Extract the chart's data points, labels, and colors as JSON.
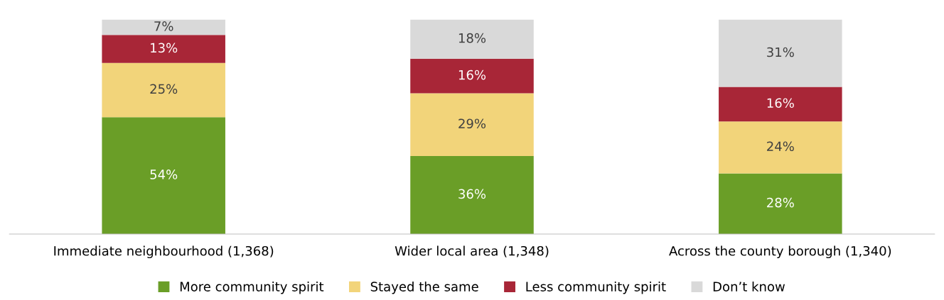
{
  "chart_data": {
    "type": "bar",
    "stacked": true,
    "tick_labels": "x",
    "legend": "bottom",
    "grid": false,
    "categories": [
      "Immediate neighbourhood (1,368)",
      "Wider local area (1,348)",
      "Across the county borough (1,340)"
    ],
    "series": [
      {
        "name": "More community spirit",
        "color": "#6a9e27",
        "values": [
          54,
          36,
          28
        ],
        "value_labels": [
          "54%",
          "36%",
          "28%"
        ]
      },
      {
        "name": "Stayed the same",
        "color": "#f2d47a",
        "values": [
          25,
          29,
          24
        ],
        "value_labels": [
          "25%",
          "29%",
          "24%"
        ]
      },
      {
        "name": "Less community spirit",
        "color": "#a82637",
        "values": [
          13,
          16,
          16
        ],
        "value_labels": [
          "13%",
          "16%",
          "16%"
        ]
      },
      {
        "name": "Don’t know",
        "color": "#d9d9d9",
        "values": [
          7,
          18,
          31
        ],
        "value_labels": [
          "7%",
          "18%",
          "31%"
        ]
      }
    ]
  }
}
